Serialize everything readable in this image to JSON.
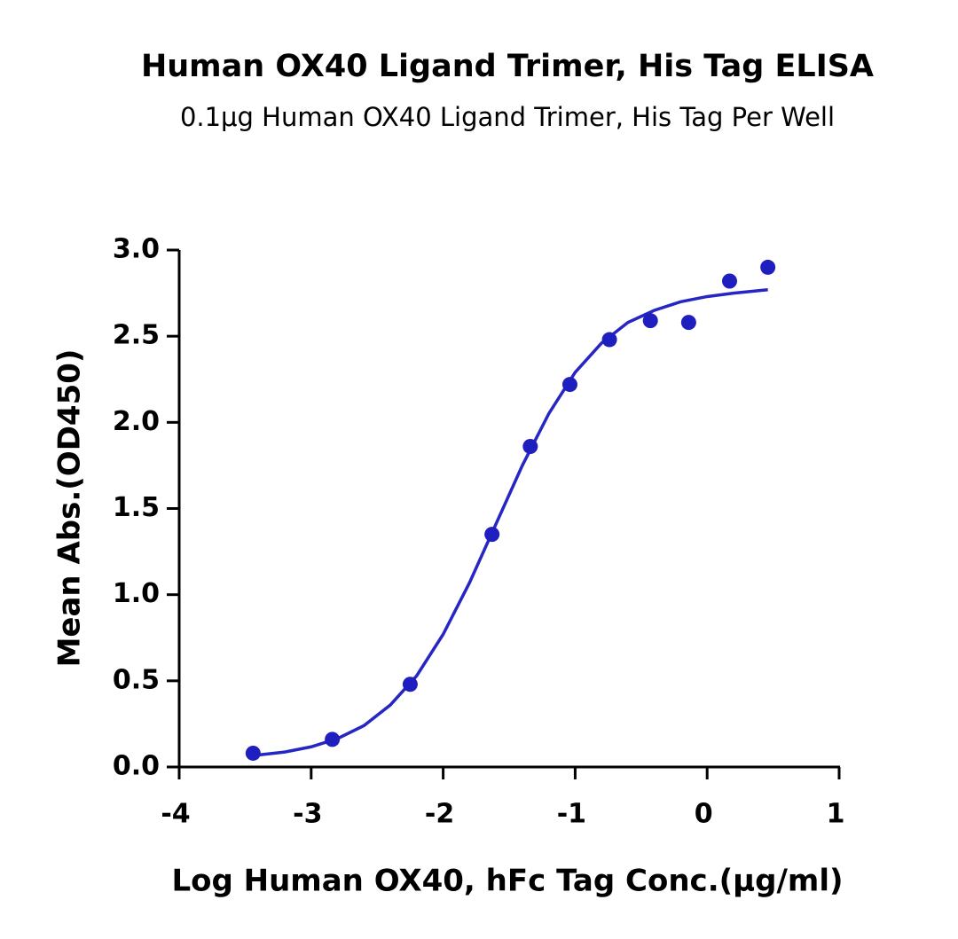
{
  "chart_data": {
    "type": "scatter",
    "title": "Human OX40 Ligand Trimer, His Tag ELISA",
    "subtitle": "0.1μg Human OX40 Ligand Trimer, His Tag Per Well",
    "x_label": "Log Human OX40, hFc Tag Conc.(μg/ml)",
    "y_label": "Mean Abs.(OD450)",
    "xlim": [
      -4,
      1
    ],
    "xticks": [
      -4,
      -3,
      -2,
      -1,
      0,
      1
    ],
    "ylim": [
      0,
      3
    ],
    "yticks": [
      {
        "value": 0,
        "label": "0.0"
      },
      {
        "value": 0.5,
        "label": "0.5"
      },
      {
        "value": 1,
        "label": "1.0"
      },
      {
        "value": 1.5,
        "label": "1.5"
      },
      {
        "value": 2,
        "label": "2.0"
      },
      {
        "value": 2.5,
        "label": "2.5"
      },
      {
        "value": 3,
        "label": "3.0"
      }
    ],
    "grid": false,
    "series": [
      {
        "type": "scatter",
        "color": "#1f1fbf",
        "x": [
          -3.44,
          -2.84,
          -2.25,
          -1.63,
          -1.34,
          -1.04,
          -0.74,
          -0.43,
          -0.14,
          0.17,
          0.46
        ],
        "values": [
          0.08,
          0.16,
          0.48,
          1.35,
          1.86,
          2.22,
          2.48,
          2.59,
          2.58,
          2.82,
          2.9
        ]
      },
      {
        "type": "line",
        "color": "#2626c4",
        "x": [
          -3.44,
          -3.2,
          -3.0,
          -2.8,
          -2.6,
          -2.4,
          -2.2,
          -2.0,
          -1.8,
          -1.6,
          -1.4,
          -1.2,
          -1.0,
          -0.8,
          -0.6,
          -0.4,
          -0.2,
          0,
          0.2,
          0.46
        ],
        "values": [
          0.066,
          0.087,
          0.117,
          0.165,
          0.24,
          0.36,
          0.53,
          0.77,
          1.07,
          1.41,
          1.75,
          2.05,
          2.29,
          2.46,
          2.58,
          2.65,
          2.7,
          2.73,
          2.75,
          2.77
        ]
      }
    ]
  }
}
